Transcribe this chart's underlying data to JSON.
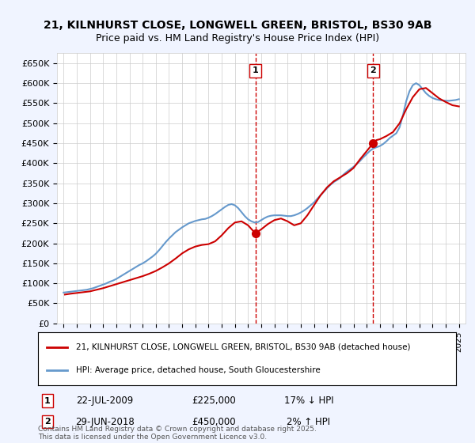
{
  "title1": "21, KILNHURST CLOSE, LONGWELL GREEN, BRISTOL, BS30 9AB",
  "title2": "Price paid vs. HM Land Registry's House Price Index (HPI)",
  "xlabel": "",
  "ylabel": "",
  "background_color": "#f0f4ff",
  "plot_bg_color": "#ffffff",
  "legend_label_red": "21, KILNHURST CLOSE, LONGWELL GREEN, BRISTOL, BS30 9AB (detached house)",
  "legend_label_blue": "HPI: Average price, detached house, South Gloucestershire",
  "footer": "Contains HM Land Registry data © Crown copyright and database right 2025.\nThis data is licensed under the Open Government Licence v3.0.",
  "sale1_date": "22-JUL-2009",
  "sale1_price": 225000,
  "sale1_hpi_diff": "17% ↓ HPI",
  "sale2_date": "29-JUN-2018",
  "sale2_price": 450000,
  "sale2_hpi_diff": "2% ↑ HPI",
  "sale1_year": 2009.55,
  "sale2_year": 2018.49,
  "ylim_max": 675000,
  "ylim_min": 0,
  "xlim_min": 1994.5,
  "xlim_max": 2025.5,
  "yticks": [
    0,
    50000,
    100000,
    150000,
    200000,
    250000,
    300000,
    350000,
    400000,
    450000,
    500000,
    550000,
    600000,
    650000
  ],
  "ytick_labels": [
    "£0",
    "£50K",
    "£100K",
    "£150K",
    "£200K",
    "£250K",
    "£300K",
    "£350K",
    "£400K",
    "£450K",
    "£500K",
    "£550K",
    "£600K",
    "£650K"
  ],
  "xticks": [
    1995,
    1996,
    1997,
    1998,
    1999,
    2000,
    2001,
    2002,
    2003,
    2004,
    2005,
    2006,
    2007,
    2008,
    2009,
    2010,
    2011,
    2012,
    2013,
    2014,
    2015,
    2016,
    2017,
    2018,
    2019,
    2020,
    2021,
    2022,
    2023,
    2024,
    2025
  ],
  "hpi_x": [
    1995.0,
    1995.25,
    1995.5,
    1995.75,
    1996.0,
    1996.25,
    1996.5,
    1996.75,
    1997.0,
    1997.25,
    1997.5,
    1997.75,
    1998.0,
    1998.25,
    1998.5,
    1998.75,
    1999.0,
    1999.25,
    1999.5,
    1999.75,
    2000.0,
    2000.25,
    2000.5,
    2000.75,
    2001.0,
    2001.25,
    2001.5,
    2001.75,
    2002.0,
    2002.25,
    2002.5,
    2002.75,
    2003.0,
    2003.25,
    2003.5,
    2003.75,
    2004.0,
    2004.25,
    2004.5,
    2004.75,
    2005.0,
    2005.25,
    2005.5,
    2005.75,
    2006.0,
    2006.25,
    2006.5,
    2006.75,
    2007.0,
    2007.25,
    2007.5,
    2007.75,
    2008.0,
    2008.25,
    2008.5,
    2008.75,
    2009.0,
    2009.25,
    2009.5,
    2009.75,
    2010.0,
    2010.25,
    2010.5,
    2010.75,
    2011.0,
    2011.25,
    2011.5,
    2011.75,
    2012.0,
    2012.25,
    2012.5,
    2012.75,
    2013.0,
    2013.25,
    2013.5,
    2013.75,
    2014.0,
    2014.25,
    2014.5,
    2014.75,
    2015.0,
    2015.25,
    2015.5,
    2015.75,
    2016.0,
    2016.25,
    2016.5,
    2016.75,
    2017.0,
    2017.25,
    2017.5,
    2017.75,
    2018.0,
    2018.25,
    2018.5,
    2018.75,
    2019.0,
    2019.25,
    2019.5,
    2019.75,
    2020.0,
    2020.25,
    2020.5,
    2020.75,
    2021.0,
    2021.25,
    2021.5,
    2021.75,
    2022.0,
    2022.25,
    2022.5,
    2022.75,
    2023.0,
    2023.25,
    2023.5,
    2023.75,
    2024.0,
    2024.25,
    2024.5,
    2024.75,
    2025.0
  ],
  "hpi_y": [
    77000,
    78000,
    79000,
    80000,
    81000,
    82000,
    83000,
    84000,
    86000,
    88000,
    91000,
    94000,
    97000,
    100000,
    104000,
    107000,
    111000,
    116000,
    121000,
    126000,
    131000,
    136000,
    141000,
    146000,
    150000,
    155000,
    161000,
    167000,
    174000,
    183000,
    193000,
    203000,
    212000,
    220000,
    228000,
    234000,
    240000,
    245000,
    250000,
    253000,
    256000,
    258000,
    260000,
    261000,
    264000,
    268000,
    273000,
    279000,
    285000,
    291000,
    296000,
    298000,
    295000,
    288000,
    278000,
    268000,
    260000,
    255000,
    252000,
    253000,
    258000,
    263000,
    267000,
    269000,
    270000,
    270000,
    270000,
    269000,
    268000,
    268000,
    270000,
    273000,
    277000,
    282000,
    288000,
    295000,
    302000,
    311000,
    320000,
    329000,
    338000,
    346000,
    353000,
    358000,
    364000,
    372000,
    379000,
    385000,
    391000,
    398000,
    406000,
    415000,
    423000,
    431000,
    437000,
    440000,
    443000,
    448000,
    455000,
    463000,
    469000,
    475000,
    490000,
    520000,
    555000,
    580000,
    595000,
    600000,
    595000,
    585000,
    575000,
    568000,
    563000,
    560000,
    558000,
    557000,
    556000,
    556000,
    557000,
    558000,
    560000
  ],
  "price_x": [
    1995.1,
    1995.5,
    1996.0,
    1996.5,
    1997.0,
    1997.5,
    1998.0,
    1998.5,
    1999.0,
    1999.5,
    2000.0,
    2000.5,
    2001.0,
    2001.5,
    2002.0,
    2002.5,
    2003.0,
    2003.5,
    2004.0,
    2004.5,
    2005.0,
    2005.5,
    2006.0,
    2006.5,
    2007.0,
    2007.5,
    2008.0,
    2008.5,
    2009.0,
    2009.55,
    2010.0,
    2010.5,
    2011.0,
    2011.5,
    2012.0,
    2012.5,
    2013.0,
    2013.5,
    2014.0,
    2014.5,
    2015.0,
    2015.5,
    2016.0,
    2016.5,
    2017.0,
    2017.5,
    2018.49,
    2018.75,
    2019.0,
    2019.5,
    2020.0,
    2020.5,
    2021.0,
    2021.5,
    2022.0,
    2022.5,
    2023.0,
    2023.5,
    2024.0,
    2024.5,
    2025.0
  ],
  "price_y": [
    72000,
    74000,
    76000,
    78000,
    80000,
    84000,
    88000,
    93000,
    98000,
    103000,
    108000,
    113000,
    118000,
    124000,
    131000,
    140000,
    150000,
    162000,
    175000,
    185000,
    192000,
    196000,
    198000,
    205000,
    220000,
    238000,
    252000,
    255000,
    245000,
    225000,
    235000,
    248000,
    258000,
    262000,
    255000,
    245000,
    250000,
    270000,
    295000,
    320000,
    340000,
    355000,
    365000,
    375000,
    388000,
    410000,
    450000,
    458000,
    460000,
    468000,
    478000,
    500000,
    535000,
    565000,
    585000,
    588000,
    575000,
    562000,
    553000,
    545000,
    542000
  ],
  "red_color": "#cc0000",
  "blue_color": "#6699cc",
  "marker1_color": "#cc0000",
  "marker2_color": "#cc3333",
  "vline_color": "#cc0000"
}
